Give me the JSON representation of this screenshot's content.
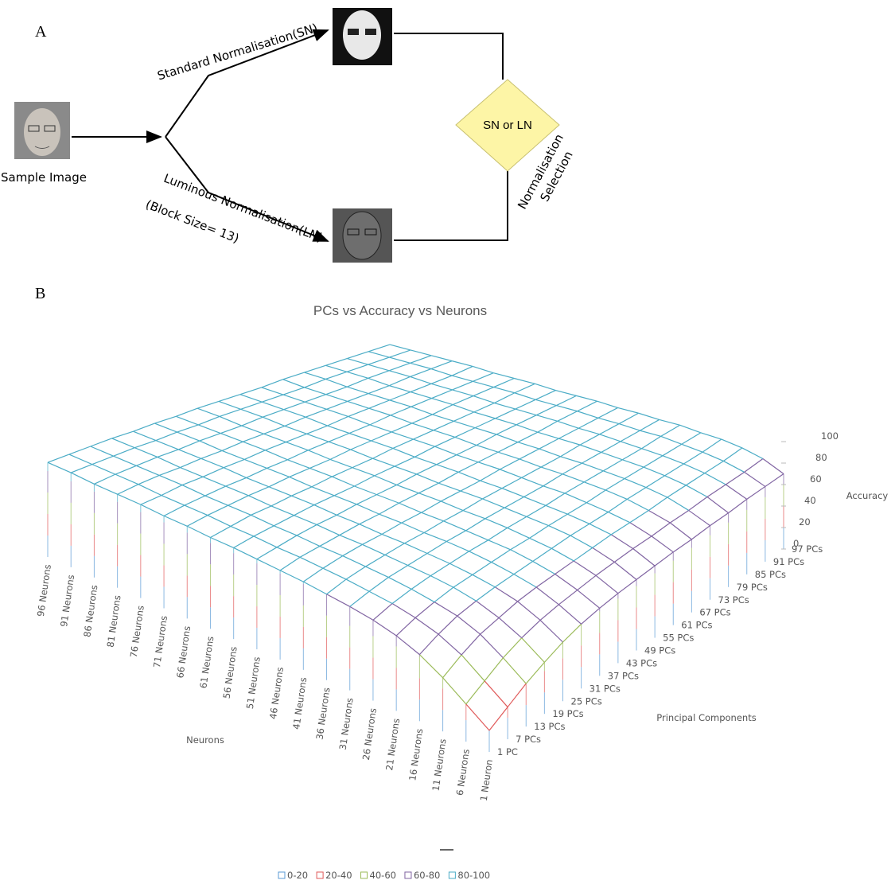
{
  "diagram": {
    "label": "A",
    "input": "Sample Image",
    "branch_top": "Standard Normalisation(SN)",
    "branch_bottom": "Luminous Normalisation(LN)",
    "branch_bottom_note": "(Block Size= 13)",
    "decision": "SN or LN",
    "decision_label_1": "Normalisation",
    "decision_label_2": "Selection"
  },
  "panel_b_label": "B",
  "chart_data": {
    "type": "surface3d",
    "title": "PCs vs Accuracy vs Neurons",
    "x_label": "Neurons",
    "y_label": "Principal Components",
    "z_label": "Accuracy",
    "x": [
      "1 Neuron",
      "6 Neurons",
      "11 Neurons",
      "16 Neurons",
      "21 Neurons",
      "26 Neurons",
      "31 Neurons",
      "36 Neurons",
      "41 Neurons",
      "46 Neurons",
      "51 Neurons",
      "56 Neurons",
      "61 Neurons",
      "66 Neurons",
      "71 Neurons",
      "76 Neurons",
      "81 Neurons",
      "86 Neurons",
      "91 Neurons",
      "96 Neurons"
    ],
    "y": [
      "1 PC",
      "7 PCs",
      "13 PCs",
      "19 PCs",
      "25 PCs",
      "31 PCs",
      "37 PCs",
      "43 PCs",
      "49 PCs",
      "55 PCs",
      "61 PCs",
      "67 PCs",
      "73 PCs",
      "79 PCs",
      "85 PCs",
      "91 PCs",
      "97 PCs"
    ],
    "zlim": [
      0,
      100
    ],
    "zticks": [
      0,
      20,
      40,
      60,
      80,
      100
    ],
    "values": [
      [
        20,
        35,
        50,
        62,
        70,
        75,
        78,
        80,
        82,
        83,
        84,
        85,
        85,
        86,
        86,
        87,
        87,
        87,
        88,
        88
      ],
      [
        30,
        45,
        60,
        70,
        76,
        80,
        82,
        84,
        85,
        86,
        86,
        87,
        87,
        88,
        88,
        88,
        89,
        89,
        89,
        89
      ],
      [
        40,
        55,
        68,
        76,
        80,
        83,
        85,
        86,
        87,
        87,
        88,
        88,
        89,
        89,
        89,
        90,
        90,
        90,
        90,
        90
      ],
      [
        48,
        62,
        72,
        79,
        83,
        85,
        86,
        87,
        88,
        88,
        89,
        89,
        89,
        90,
        90,
        90,
        90,
        91,
        91,
        91
      ],
      [
        55,
        67,
        76,
        81,
        84,
        86,
        87,
        88,
        88,
        89,
        89,
        90,
        90,
        90,
        90,
        91,
        91,
        91,
        91,
        91
      ],
      [
        60,
        70,
        78,
        82,
        85,
        87,
        88,
        88,
        89,
        89,
        90,
        90,
        90,
        91,
        91,
        91,
        91,
        92,
        92,
        92
      ],
      [
        63,
        72,
        79,
        83,
        86,
        87,
        88,
        89,
        89,
        90,
        90,
        90,
        91,
        91,
        91,
        92,
        92,
        92,
        92,
        92
      ],
      [
        65,
        74,
        80,
        84,
        86,
        88,
        89,
        89,
        90,
        90,
        90,
        91,
        91,
        91,
        92,
        92,
        92,
        92,
        93,
        93
      ],
      [
        66,
        75,
        81,
        85,
        87,
        88,
        89,
        90,
        90,
        90,
        91,
        91,
        91,
        92,
        92,
        92,
        92,
        93,
        93,
        93
      ],
      [
        67,
        76,
        82,
        85,
        87,
        88,
        89,
        90,
        90,
        91,
        91,
        91,
        92,
        92,
        92,
        92,
        93,
        93,
        93,
        93
      ],
      [
        68,
        76,
        82,
        85,
        87,
        89,
        89,
        90,
        91,
        91,
        91,
        92,
        92,
        92,
        92,
        93,
        93,
        93,
        93,
        93
      ],
      [
        68,
        77,
        82,
        86,
        88,
        89,
        90,
        90,
        91,
        91,
        91,
        92,
        92,
        92,
        93,
        93,
        93,
        93,
        93,
        94
      ],
      [
        69,
        77,
        83,
        86,
        88,
        89,
        90,
        90,
        91,
        91,
        92,
        92,
        92,
        92,
        93,
        93,
        93,
        93,
        94,
        94
      ],
      [
        69,
        78,
        83,
        86,
        88,
        89,
        90,
        91,
        91,
        91,
        92,
        92,
        92,
        93,
        93,
        93,
        93,
        94,
        94,
        94
      ],
      [
        70,
        78,
        83,
        86,
        88,
        89,
        90,
        91,
        91,
        92,
        92,
        92,
        92,
        93,
        93,
        93,
        94,
        94,
        94,
        94
      ],
      [
        70,
        78,
        83,
        86,
        88,
        90,
        90,
        91,
        91,
        92,
        92,
        92,
        93,
        93,
        93,
        93,
        94,
        94,
        94,
        94
      ],
      [
        70,
        79,
        84,
        87,
        88,
        90,
        90,
        91,
        91,
        92,
        92,
        92,
        93,
        93,
        93,
        94,
        94,
        94,
        94,
        94
      ]
    ],
    "legend": [
      {
        "name": "0-20",
        "color": "#5b9bd5"
      },
      {
        "name": "20-40",
        "color": "#e05a5a"
      },
      {
        "name": "40-60",
        "color": "#9bbb59"
      },
      {
        "name": "60-80",
        "color": "#8064a2"
      },
      {
        "name": "80-100",
        "color": "#4bacc6"
      }
    ]
  }
}
